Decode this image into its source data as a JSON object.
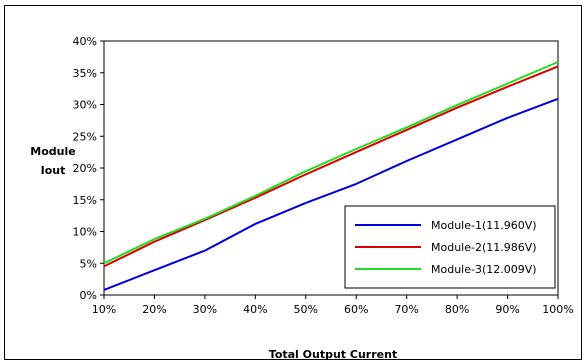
{
  "chart_data": {
    "type": "line",
    "title": "",
    "xlabel": "Total Output Current",
    "ylabel": [
      "Module",
      "Iout"
    ],
    "x": [
      "10%",
      "20%",
      "30%",
      "40%",
      "50%",
      "60%",
      "70%",
      "80%",
      "90%",
      "100%"
    ],
    "y_ticks": [
      "0%",
      "5%",
      "10%",
      "15%",
      "20%",
      "25%",
      "30%",
      "35%",
      "40%"
    ],
    "ylim": [
      0,
      40
    ],
    "grid": false,
    "legend_position": "bottom-right",
    "series": [
      {
        "name": "Module-1(11.960V)",
        "color": "#0000dd",
        "values": [
          0.8,
          3.9,
          7.0,
          11.2,
          14.5,
          17.5,
          21.1,
          24.5,
          27.9,
          30.9
        ]
      },
      {
        "name": "Module-2(11.986V)",
        "color": "#dd0000",
        "values": [
          4.5,
          8.4,
          11.8,
          15.3,
          19.0,
          22.5,
          26.0,
          29.5,
          32.8,
          36.0
        ]
      },
      {
        "name": "Module-3(12.009V)",
        "color": "#22dd22",
        "values": [
          5.0,
          8.8,
          12.0,
          15.6,
          19.5,
          23.0,
          26.4,
          29.9,
          33.3,
          36.7
        ]
      }
    ]
  }
}
